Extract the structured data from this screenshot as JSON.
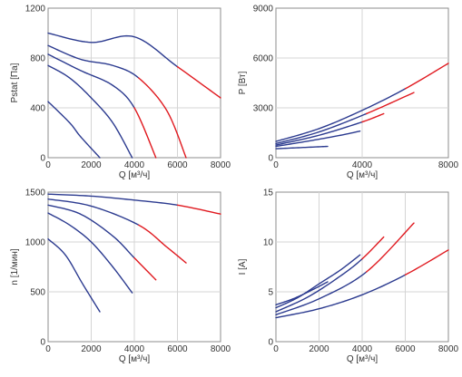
{
  "colors": {
    "curve": "#2b3a8f",
    "high_load": "#e0191f",
    "grid": "#d4d4d4",
    "frame": "#8c8c8c"
  },
  "chart_data": [
    {
      "type": "line",
      "xlabel": "Q [м³/ч]",
      "ylabel": "Pstat [Па]",
      "xlim": [
        0,
        8000
      ],
      "ylim": [
        0,
        1200
      ],
      "xticks": [
        "0",
        "2000",
        "4000",
        "6000",
        "8000"
      ],
      "yticks": [
        "0",
        "400",
        "800",
        "1200"
      ],
      "grid": true,
      "series": [
        {
          "x": [
            0,
            2000,
            4000,
            6000,
            8000
          ],
          "values": [
            1000,
            925,
            970,
            730,
            480
          ],
          "red_from_x": 6000
        },
        {
          "x": [
            0,
            1500,
            3000,
            4200,
            5500,
            6400
          ],
          "values": [
            900,
            790,
            740,
            640,
            380,
            0
          ],
          "red_from_x": 4200
        },
        {
          "x": [
            0,
            1500,
            3000,
            4000,
            5000
          ],
          "values": [
            830,
            700,
            580,
            400,
            0
          ],
          "red_from_x": 4000
        },
        {
          "x": [
            0,
            1000,
            2000,
            3000,
            3900
          ],
          "values": [
            740,
            640,
            480,
            280,
            0
          ]
        },
        {
          "x": [
            0,
            1000,
            1500,
            2400
          ],
          "values": [
            450,
            280,
            170,
            0
          ]
        }
      ]
    },
    {
      "type": "line",
      "xlabel": "Q [м³/ч]",
      "ylabel": "P [Вт]",
      "xlim": [
        0,
        8000
      ],
      "ylim": [
        0,
        9000
      ],
      "xticks": [
        "0",
        "4000",
        "8000"
      ],
      "yticks": [
        "0",
        "3000",
        "6000",
        "9000"
      ],
      "grid": true,
      "series": [
        {
          "x": [
            0,
            2000,
            4000,
            6000,
            8000
          ],
          "values": [
            980,
            1750,
            2850,
            4150,
            5680
          ],
          "red_from_x": 6000
        },
        {
          "x": [
            0,
            2000,
            4200,
            6400
          ],
          "values": [
            850,
            1550,
            2650,
            3920
          ],
          "red_from_x": 4200
        },
        {
          "x": [
            0,
            2000,
            4000,
            5000
          ],
          "values": [
            760,
            1350,
            2150,
            2650
          ],
          "red_from_x": 4000
        },
        {
          "x": [
            0,
            1500,
            3000,
            3900
          ],
          "values": [
            680,
            1000,
            1350,
            1600
          ]
        },
        {
          "x": [
            0,
            1200,
            2400
          ],
          "values": [
            540,
            610,
            680
          ]
        }
      ]
    },
    {
      "type": "line",
      "xlabel": "Q [м³/ч]",
      "ylabel": "n [1/мин]",
      "xlim": [
        0,
        8000
      ],
      "ylim": [
        0,
        1500
      ],
      "xticks": [
        "0",
        "2000",
        "4000",
        "6000",
        "8000"
      ],
      "yticks": [
        "0",
        "500",
        "1000",
        "1500"
      ],
      "grid": true,
      "series": [
        {
          "x": [
            0,
            2000,
            4000,
            6000,
            8000
          ],
          "values": [
            1480,
            1460,
            1420,
            1370,
            1280
          ],
          "red_from_x": 6000
        },
        {
          "x": [
            0,
            2000,
            4200,
            5500,
            6400
          ],
          "values": [
            1430,
            1360,
            1170,
            950,
            790
          ],
          "red_from_x": 4200
        },
        {
          "x": [
            0,
            1500,
            3000,
            4000,
            5000
          ],
          "values": [
            1370,
            1280,
            1060,
            840,
            620
          ],
          "red_from_x": 4000
        },
        {
          "x": [
            0,
            1000,
            2000,
            3000,
            3900
          ],
          "values": [
            1290,
            1170,
            1000,
            750,
            490
          ]
        },
        {
          "x": [
            0,
            800,
            1600,
            2400
          ],
          "values": [
            1030,
            870,
            580,
            300
          ]
        }
      ]
    },
    {
      "type": "line",
      "xlabel": "Q [м³/ч]",
      "ylabel": "I [A]",
      "xlim": [
        0,
        8000
      ],
      "ylim": [
        0,
        15
      ],
      "xticks": [
        "0",
        "2000",
        "4000",
        "6000",
        "8000"
      ],
      "yticks": [
        "0",
        "5",
        "10",
        "15"
      ],
      "grid": true,
      "series": [
        {
          "x": [
            0,
            2000,
            4000,
            6000,
            8000
          ],
          "values": [
            2.4,
            3.3,
            4.7,
            6.7,
            9.2
          ],
          "red_from_x": 6000
        },
        {
          "x": [
            0,
            2000,
            4200,
            6400
          ],
          "values": [
            2.7,
            4.3,
            7.0,
            11.9
          ],
          "red_from_x": 4200
        },
        {
          "x": [
            0,
            1500,
            3000,
            4000,
            5000
          ],
          "values": [
            3.0,
            4.5,
            6.6,
            8.3,
            10.5
          ],
          "red_from_x": 4000
        },
        {
          "x": [
            0,
            1000,
            2000,
            3000,
            3900
          ],
          "values": [
            3.4,
            4.4,
            5.8,
            7.2,
            8.7
          ]
        },
        {
          "x": [
            0,
            800,
            1600,
            2400
          ],
          "values": [
            3.7,
            4.3,
            5.1,
            6.0
          ]
        }
      ]
    }
  ]
}
